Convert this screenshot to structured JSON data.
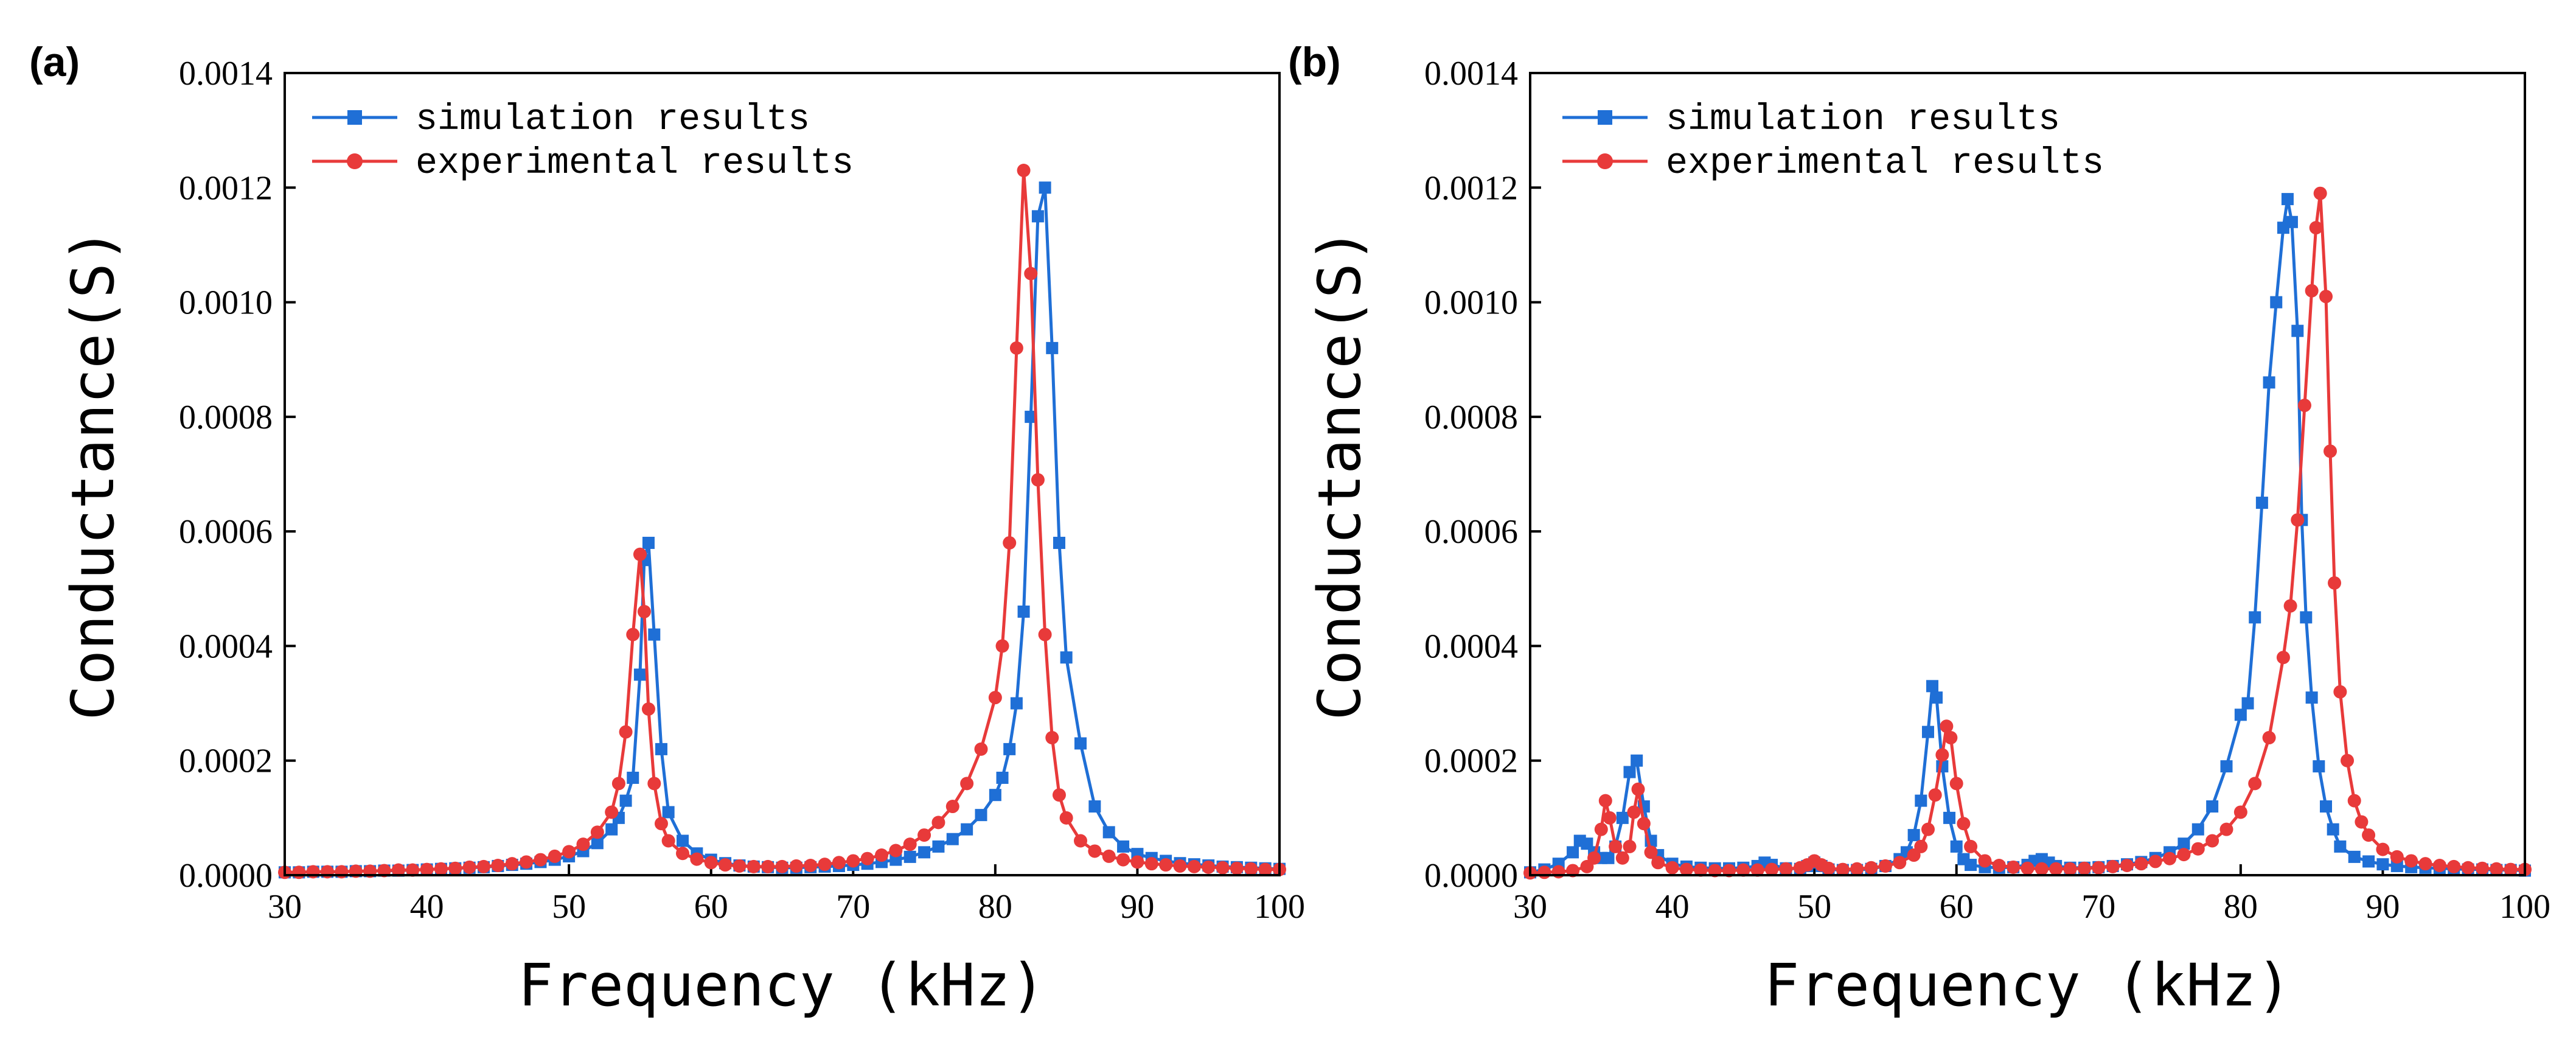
{
  "chart_data": [
    {
      "panel_label": "(a)",
      "type": "line",
      "xlabel": "Frequency (kHz)",
      "ylabel": "Conductance(S)",
      "xlim": [
        30,
        100
      ],
      "ylim": [
        0,
        0.0014
      ],
      "xticks": [
        30,
        40,
        50,
        60,
        70,
        80,
        90,
        100
      ],
      "yticks": [
        0,
        0.0002,
        0.0004,
        0.0006,
        0.0008,
        0.001,
        0.0012,
        0.0014
      ],
      "ytick_labels": [
        "0.0000",
        "0.0002",
        "0.0004",
        "0.0006",
        "0.0008",
        "0.0010",
        "0.0012",
        "0.0014"
      ],
      "legend_position": "top-left",
      "series": [
        {
          "name": "simulation results",
          "color": "#1f6fd6",
          "marker": "square",
          "x": [
            30,
            31,
            32,
            33,
            34,
            35,
            36,
            37,
            38,
            39,
            40,
            41,
            42,
            43,
            44,
            45,
            46,
            47,
            48,
            49,
            50,
            51,
            52,
            53,
            53.5,
            54,
            54.5,
            55,
            55.3,
            55.6,
            56,
            56.5,
            57,
            58,
            59,
            60,
            61,
            62,
            63,
            64,
            65,
            66,
            67,
            68,
            69,
            70,
            71,
            72,
            73,
            74,
            75,
            76,
            77,
            78,
            79,
            80,
            80.5,
            81,
            81.5,
            82,
            82.5,
            83,
            83.5,
            84,
            84.5,
            85,
            86,
            87,
            88,
            89,
            90,
            91,
            92,
            93,
            94,
            95,
            96,
            97,
            98,
            99,
            100
          ],
          "y": [
            5e-06,
            5e-06,
            6e-06,
            6e-06,
            6e-06,
            7e-06,
            7e-06,
            8e-06,
            8e-06,
            9e-06,
            1e-05,
            1.1e-05,
            1.2e-05,
            1.3e-05,
            1.4e-05,
            1.6e-05,
            1.8e-05,
            2e-05,
            2.3e-05,
            2.7e-05,
            3.3e-05,
            4.2e-05,
            5.6e-05,
            8e-05,
            0.0001,
            0.00013,
            0.00017,
            0.00035,
            0.00055,
            0.00058,
            0.00042,
            0.00022,
            0.00011,
            6e-05,
            3.8e-05,
            2.7e-05,
            2.1e-05,
            1.7e-05,
            1.5e-05,
            1.4e-05,
            1.3e-05,
            1.3e-05,
            1.4e-05,
            1.5e-05,
            1.6e-05,
            1.8e-05,
            2e-05,
            2.3e-05,
            2.7e-05,
            3.2e-05,
            4e-05,
            5e-05,
            6.3e-05,
            8e-05,
            0.000105,
            0.00014,
            0.00017,
            0.00022,
            0.0003,
            0.00046,
            0.0008,
            0.00115,
            0.0012,
            0.00092,
            0.00058,
            0.00038,
            0.00023,
            0.00012,
            7.5e-05,
            5e-05,
            3.7e-05,
            3e-05,
            2.5e-05,
            2.1e-05,
            1.9e-05,
            1.7e-05,
            1.5e-05,
            1.4e-05,
            1.3e-05,
            1.2e-05,
            1.1e-05
          ]
        },
        {
          "name": "experimental results",
          "color": "#e83a3a",
          "marker": "circle",
          "x": [
            30,
            31,
            32,
            33,
            34,
            35,
            36,
            37,
            38,
            39,
            40,
            41,
            42,
            43,
            44,
            45,
            46,
            47,
            48,
            49,
            50,
            51,
            52,
            53,
            53.5,
            54,
            54.5,
            55,
            55.3,
            55.6,
            56,
            56.5,
            57,
            58,
            59,
            60,
            61,
            62,
            63,
            64,
            65,
            66,
            67,
            68,
            69,
            70,
            71,
            72,
            73,
            74,
            75,
            76,
            77,
            78,
            79,
            80,
            80.5,
            81,
            81.5,
            82,
            82.5,
            83,
            83.5,
            84,
            84.5,
            85,
            86,
            87,
            88,
            89,
            90,
            91,
            92,
            93,
            94,
            95,
            96,
            97,
            98,
            99,
            100
          ],
          "y": [
            5e-06,
            5e-06,
            6e-06,
            6e-06,
            6e-06,
            7e-06,
            7e-06,
            8e-06,
            9e-06,
            9e-06,
            1e-05,
            1.1e-05,
            1.2e-05,
            1.4e-05,
            1.5e-05,
            1.7e-05,
            2e-05,
            2.3e-05,
            2.7e-05,
            3.3e-05,
            4.1e-05,
            5.4e-05,
            7.5e-05,
            0.00011,
            0.00016,
            0.00025,
            0.00042,
            0.00056,
            0.00046,
            0.00029,
            0.00016,
            9e-05,
            6e-05,
            3.8e-05,
            2.8e-05,
            2.2e-05,
            1.8e-05,
            1.6e-05,
            1.5e-05,
            1.5e-05,
            1.5e-05,
            1.6e-05,
            1.7e-05,
            1.9e-05,
            2.2e-05,
            2.5e-05,
            2.9e-05,
            3.5e-05,
            4.3e-05,
            5.4e-05,
            7e-05,
            9.2e-05,
            0.00012,
            0.00016,
            0.00022,
            0.00031,
            0.0004,
            0.00058,
            0.00092,
            0.00123,
            0.00105,
            0.00069,
            0.00042,
            0.00024,
            0.00014,
            0.0001,
            6e-05,
            4.2e-05,
            3.3e-05,
            2.7e-05,
            2.3e-05,
            2e-05,
            1.8e-05,
            1.6e-05,
            1.5e-05,
            1.4e-05,
            1.3e-05,
            1.2e-05,
            1.1e-05,
            1e-05,
            1e-05
          ]
        }
      ]
    },
    {
      "panel_label": "(b)",
      "type": "line",
      "xlabel": "Frequency (kHz)",
      "ylabel": "Conductance(S)",
      "xlim": [
        30,
        100
      ],
      "ylim": [
        0,
        0.0014
      ],
      "xticks": [
        30,
        40,
        50,
        60,
        70,
        80,
        90,
        100
      ],
      "yticks": [
        0,
        0.0002,
        0.0004,
        0.0006,
        0.0008,
        0.001,
        0.0012,
        0.0014
      ],
      "ytick_labels": [
        "0.0000",
        "0.0002",
        "0.0004",
        "0.0006",
        "0.0008",
        "0.0010",
        "0.0012",
        "0.0014"
      ],
      "legend_position": "top-left",
      "series": [
        {
          "name": "simulation results",
          "color": "#1f6fd6",
          "marker": "square",
          "x": [
            30,
            31,
            32,
            33,
            33.5,
            34,
            34.5,
            35,
            35.5,
            36,
            36.5,
            37,
            37.5,
            38,
            38.5,
            39,
            40,
            41,
            42,
            43,
            44,
            45,
            46,
            46.5,
            47,
            48,
            49,
            49.5,
            50,
            50.5,
            51,
            52,
            53,
            54,
            55,
            56,
            56.5,
            57,
            57.5,
            58,
            58.3,
            58.6,
            59,
            59.5,
            60,
            60.5,
            61,
            62,
            63,
            64,
            65,
            65.5,
            66,
            66.5,
            67,
            68,
            69,
            70,
            71,
            72,
            73,
            74,
            75,
            76,
            77,
            78,
            79,
            80,
            80.5,
            81,
            81.5,
            82,
            82.5,
            83,
            83.3,
            83.6,
            84,
            84.3,
            84.6,
            85,
            85.5,
            86,
            86.5,
            87,
            88,
            89,
            90,
            91,
            92,
            93,
            94,
            95,
            96,
            97,
            98,
            99,
            100
          ],
          "y": [
            5e-06,
            1e-05,
            2e-05,
            4e-05,
            6e-05,
            5.5e-05,
            4e-05,
            3e-05,
            3e-05,
            5e-05,
            0.0001,
            0.00018,
            0.0002,
            0.00012,
            6e-05,
            3.5e-05,
            2e-05,
            1.5e-05,
            1.3e-05,
            1.2e-05,
            1.2e-05,
            1.3e-05,
            1.6e-05,
            2.2e-05,
            1.8e-05,
            1.2e-05,
            1.1e-05,
            1.6e-05,
            2.2e-05,
            1.6e-05,
            1e-05,
            9e-06,
            9e-06,
            1.1e-05,
            1.6e-05,
            2.8e-05,
            4e-05,
            7e-05,
            0.00013,
            0.00025,
            0.00033,
            0.00031,
            0.00019,
            0.0001,
            5e-05,
            2.8e-05,
            1.8e-05,
            1.4e-05,
            1.3e-05,
            1.4e-05,
            1.8e-05,
            2.5e-05,
            2.8e-05,
            2.2e-05,
            1.6e-05,
            1.3e-05,
            1.3e-05,
            1.4e-05,
            1.6e-05,
            1.9e-05,
            2.3e-05,
            3e-05,
            4e-05,
            5.5e-05,
            8e-05,
            0.00012,
            0.00019,
            0.00028,
            0.0003,
            0.00045,
            0.00065,
            0.00086,
            0.001,
            0.00113,
            0.00118,
            0.00114,
            0.00095,
            0.00062,
            0.00045,
            0.00031,
            0.00019,
            0.00012,
            8e-05,
            5e-05,
            3.2e-05,
            2.4e-05,
            1.9e-05,
            1.6e-05,
            1.4e-05,
            1.3e-05,
            1.2e-05,
            1.1e-05,
            1e-05,
            1e-05,
            9e-06,
            9e-06,
            8e-06
          ]
        },
        {
          "name": "experimental results",
          "color": "#e83a3a",
          "marker": "circle",
          "x": [
            30,
            31,
            32,
            33,
            34,
            34.5,
            35,
            35.3,
            35.6,
            36,
            36.5,
            37,
            37.3,
            37.6,
            38,
            38.5,
            39,
            40,
            41,
            42,
            43,
            44,
            45,
            46,
            47,
            48,
            49,
            49.5,
            50,
            50.5,
            51,
            52,
            53,
            54,
            55,
            56,
            57,
            57.5,
            58,
            58.5,
            59,
            59.3,
            59.6,
            60,
            60.5,
            61,
            62,
            63,
            64,
            65,
            66,
            67,
            68,
            69,
            70,
            71,
            72,
            73,
            74,
            75,
            76,
            77,
            78,
            79,
            80,
            81,
            82,
            83,
            83.5,
            84,
            84.5,
            85,
            85.3,
            85.6,
            86,
            86.3,
            86.6,
            87,
            87.5,
            88,
            88.5,
            89,
            90,
            91,
            92,
            93,
            94,
            95,
            96,
            97,
            98,
            99,
            100
          ],
          "y": [
            4e-06,
            5e-06,
            6e-06,
            8e-06,
            1.5e-05,
            3e-05,
            8e-05,
            0.00013,
            0.0001,
            5e-05,
            3e-05,
            5e-05,
            0.00011,
            0.00015,
            9e-05,
            4e-05,
            2.2e-05,
            1.3e-05,
            1e-05,
            9e-06,
            8e-06,
            8e-06,
            9e-06,
            9e-06,
            1e-05,
            1.1e-05,
            1.3e-05,
            1.8e-05,
            2.5e-05,
            1.8e-05,
            1.2e-05,
            1e-05,
            1.1e-05,
            1.3e-05,
            1.6e-05,
            2.2e-05,
            3.5e-05,
            5e-05,
            8e-05,
            0.00014,
            0.00021,
            0.00026,
            0.00024,
            0.00016,
            9e-05,
            5e-05,
            2.5e-05,
            1.7e-05,
            1.4e-05,
            1.2e-05,
            1.1e-05,
            1.1e-05,
            1.1e-05,
            1.2e-05,
            1.3e-05,
            1.5e-05,
            1.7e-05,
            2e-05,
            2.4e-05,
            2.9e-05,
            3.6e-05,
            4.6e-05,
            6e-05,
            8e-05,
            0.00011,
            0.00016,
            0.00024,
            0.00038,
            0.00047,
            0.00062,
            0.00082,
            0.00102,
            0.00113,
            0.00119,
            0.00101,
            0.00074,
            0.00051,
            0.00032,
            0.0002,
            0.00013,
            9.3e-05,
            7e-05,
            4.5e-05,
            3.2e-05,
            2.5e-05,
            2e-05,
            1.7e-05,
            1.5e-05,
            1.3e-05,
            1.2e-05,
            1.1e-05,
            1e-05,
            1e-05
          ]
        }
      ]
    }
  ]
}
